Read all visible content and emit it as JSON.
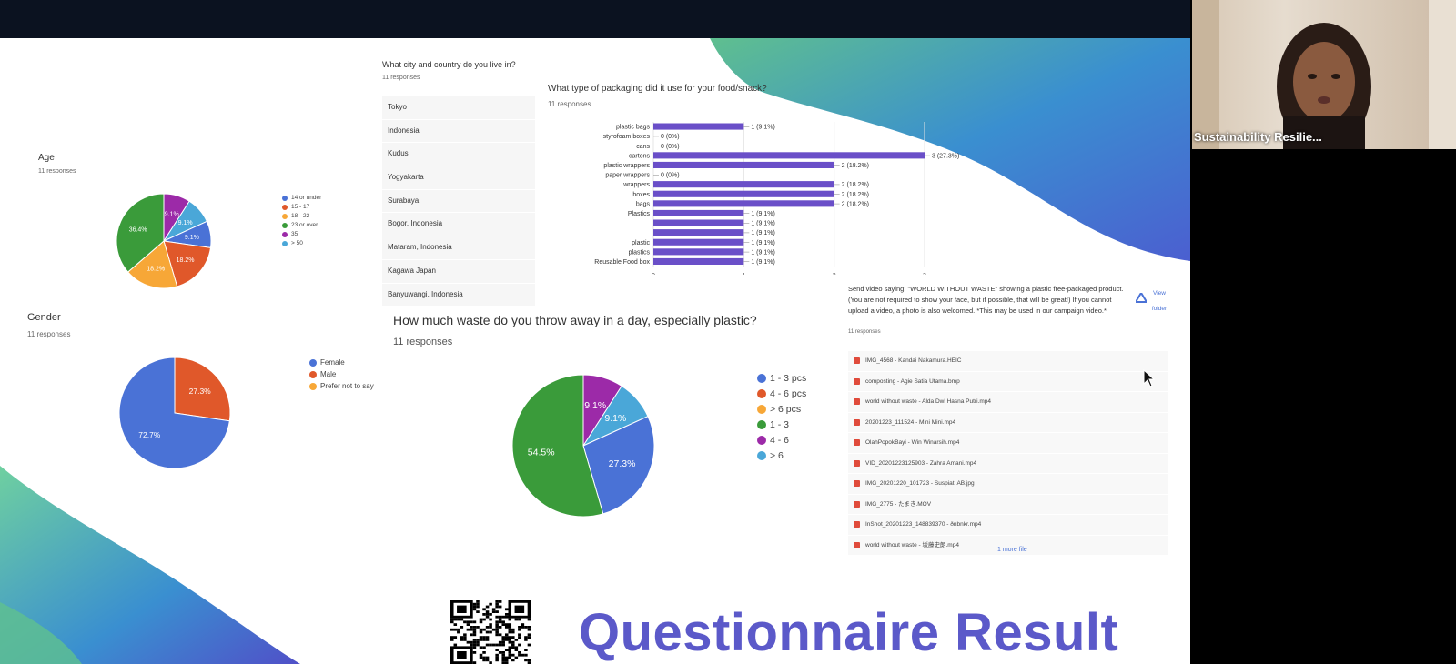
{
  "window": {
    "participant_name": "Sustainability Resilie..."
  },
  "slide": {
    "title": "Questionnaire Result",
    "age_chart": {
      "question": "Age",
      "responses": "11 responses",
      "chart_data": {
        "type": "pie",
        "labels": [
          "14 or under",
          "15 - 17",
          "18 - 22",
          "23 or over",
          "35",
          "> 50"
        ],
        "values": [
          9.1,
          18.2,
          18.2,
          36.4,
          9.1,
          9.1
        ],
        "slice_labels": [
          "9.1%",
          "18.2%",
          "18.2%",
          "36.4%",
          "9.1%",
          "9.1%"
        ],
        "colors": [
          "#4a72d6",
          "#e0582a",
          "#f7a737",
          "#3a9b3a",
          "#9c2aa8",
          "#4aa7d8"
        ],
        "legend_position": "right"
      }
    },
    "gender_chart": {
      "question": "Gender",
      "responses": "11 responses",
      "chart_data": {
        "type": "pie",
        "labels": [
          "Female",
          "Male",
          "Prefer not to say"
        ],
        "values": [
          72.7,
          27.3,
          0
        ],
        "slice_labels": [
          "72.7%",
          "27.3%",
          ""
        ],
        "colors": [
          "#4a72d6",
          "#e0582a",
          "#f7a737"
        ],
        "legend_position": "right"
      }
    },
    "city_question": {
      "question": "What city and country do you live in?",
      "responses": "11 responses",
      "rows": [
        "Tokyo",
        "Indonesia",
        "Kudus",
        "Yogyakarta",
        "Surabaya",
        "Bogor, Indonesia",
        "Mataram, Indonesia",
        "Kagawa Japan",
        "Banyuwangi, Indonesia"
      ]
    },
    "packaging_chart": {
      "question": "What type of packaging did it use for your food/snack?",
      "responses": "11 responses",
      "chart_data": {
        "type": "bar",
        "orientation": "horizontal",
        "categories": [
          "plastic bags",
          "styrofoam boxes",
          "cans",
          "cartons",
          "plastic wrappers",
          "paper wrappers",
          "wrappers",
          "boxes",
          "bags",
          "Plastics",
          "",
          "",
          "plastic",
          "plastics",
          "Reusable Food box"
        ],
        "values": [
          1,
          0,
          0,
          3,
          2,
          0,
          2,
          2,
          2,
          1,
          1,
          1,
          1,
          1,
          1
        ],
        "data_labels": [
          "1 (9.1%)",
          "0 (0%)",
          "0 (0%)",
          "3 (27.3%)",
          "2 (18.2%)",
          "0 (0%)",
          "2 (18.2%)",
          "2 (18.2%)",
          "2 (18.2%)",
          "1 (9.1%)",
          "1 (9.1%)",
          "1 (9.1%)",
          "1 (9.1%)",
          "1 (9.1%)",
          "1 (9.1%)"
        ],
        "x_ticks": [
          "0",
          "1",
          "2",
          "3"
        ],
        "xlim": [
          0,
          3
        ],
        "color": "#6a4fc8"
      }
    },
    "waste_chart": {
      "question": "How much waste do you throw away in a day, especially plastic?",
      "responses": "11 responses",
      "chart_data": {
        "type": "pie",
        "labels": [
          "1 - 3 pcs",
          "4 - 6 pcs",
          "> 6 pcs",
          "1 - 3",
          "4 - 6",
          "> 6"
        ],
        "values": [
          27.3,
          0,
          0,
          54.5,
          9.1,
          9.1
        ],
        "slice_labels": [
          "27.3%",
          "",
          "",
          "54.5%",
          "9.1%",
          "9.1%"
        ],
        "colors": [
          "#4a72d6",
          "#e0582a",
          "#f7a737",
          "#3a9b3a",
          "#9c2aa8",
          "#4aa7d8"
        ],
        "legend_position": "right"
      }
    },
    "video_question": {
      "question": "Send video saying: \"WORLD WITHOUT WASTE\" showing a plastic free-packaged product. (You are not required to show your face, but if possible, that will be great!) If you cannot upload a video, a photo is also welcomed. *This may be used in our campaign video.*",
      "responses": "11 responses",
      "view_folder": "View folder",
      "files": [
        "IMG_4568 - Kandai Nakamura.HEIC",
        "composting - Agie Satia Utama.bmp",
        "world without waste - Alda Dwi Hasna Putri.mp4",
        "20201223_111524 - Mini Mini.mp4",
        "OlahPopokBayi - Win Winarsih.mp4",
        "VID_20201223125903 - Zahra Amani.mp4",
        "IMG_20201220_101723 - Suspiati AB.jpg",
        "IMG_2775 - たまき.MOV",
        "InShot_20201223_148839370 - ðnbnkr.mp4",
        "world without waste - 坂藤史朗.mp4"
      ],
      "more_files": "1 more file"
    }
  }
}
